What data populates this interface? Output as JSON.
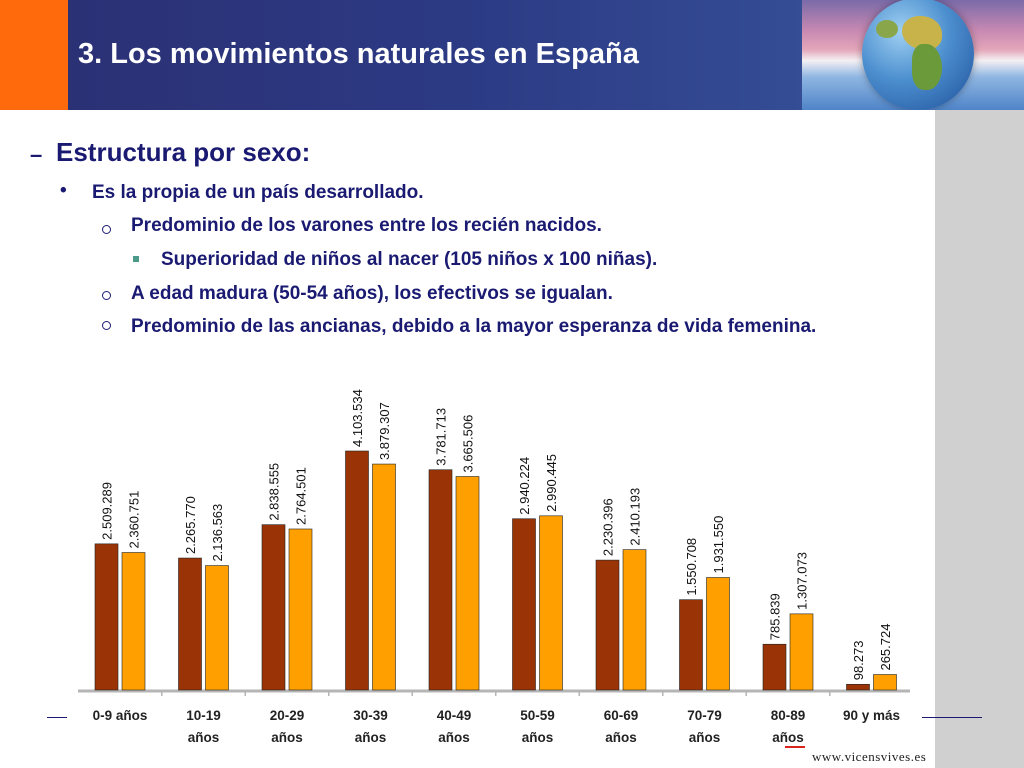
{
  "slide": {
    "title": "3. Los movimientos naturales en España",
    "heading_marker": "–",
    "heading": "Estructura por sexo:",
    "bullet_marker": "•",
    "bullets": [
      "Es la propia de un país desarrollado.",
      "Predominio de los varones entre los recién nacidos.",
      "Superioridad de niños al nacer (105 niños x 100 niñas).",
      "A edad madura (50-54 años), los efectivos se igualan.",
      "Predominio de las ancianas, debido a la mayor esperanza de vida femenina."
    ],
    "website": "www.vicensvives.es"
  },
  "colors": {
    "men": "#9a3306",
    "women": "#ffa000",
    "header": "#2c3a84",
    "accent_orange": "#ff6a0d",
    "text": "#1a1a72"
  },
  "chart_data": {
    "type": "bar",
    "categories": [
      [
        "0-9 años"
      ],
      [
        "10-19",
        "años"
      ],
      [
        "20-29",
        "años"
      ],
      [
        "30-39",
        "años"
      ],
      [
        "40-49",
        "años"
      ],
      [
        "50-59",
        "años"
      ],
      [
        "60-69",
        "años"
      ],
      [
        "70-79",
        "años"
      ],
      [
        "80-89",
        "años"
      ],
      [
        "90 y más"
      ]
    ],
    "series": [
      {
        "values": [
          2509289,
          2265770,
          2838555,
          4103534,
          3781713,
          2940224,
          2230396,
          1550708,
          785839,
          98273
        ]
      },
      {
        "values": [
          2360751,
          2136563,
          2764501,
          3879307,
          3665506,
          2990445,
          2410193,
          1931550,
          1307073,
          265724
        ]
      }
    ],
    "labels": [
      [
        "2.509.289",
        "2.265.770",
        "2.838.555",
        "4.103.534",
        "3.781.713",
        "2.940.224",
        "2.230.396",
        "1.550.708",
        "785.839",
        "98.273"
      ],
      [
        "2.360.751",
        "2.136.563",
        "2.764.501",
        "3.879.307",
        "3.665.506",
        "2.990.445",
        "2.410.193",
        "1.931.550",
        "1.307.073",
        "265.724"
      ]
    ],
    "ylim": [
      0,
      4500000
    ],
    "grid": false,
    "legend": "none"
  }
}
